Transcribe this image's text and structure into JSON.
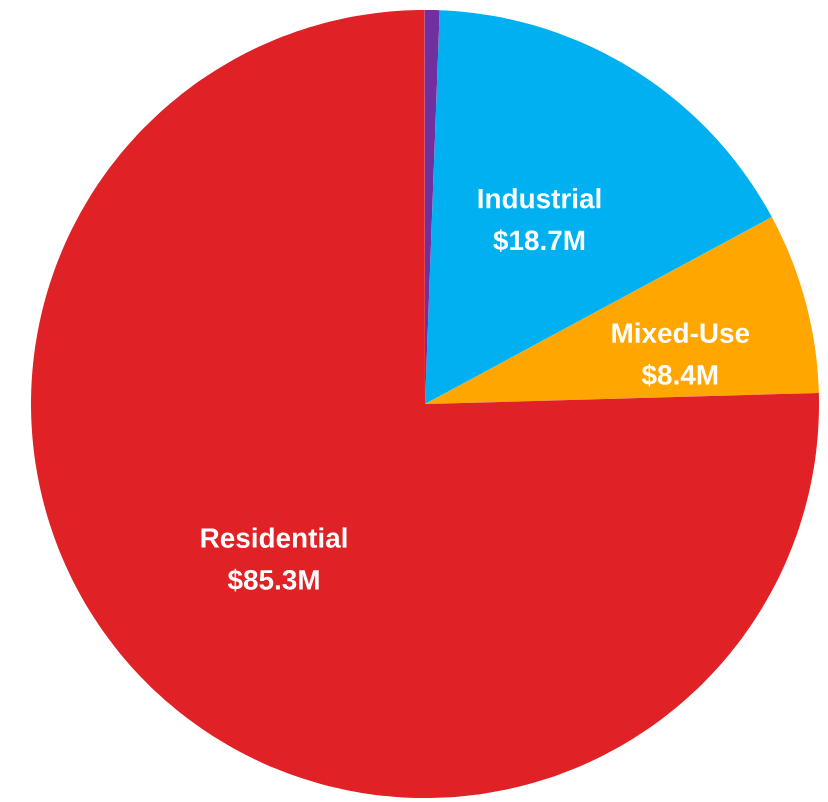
{
  "chart_data": {
    "type": "pie",
    "categories": [
      "Mixed-Use",
      "Industrial",
      null,
      "Residential"
    ],
    "values": [
      8.4,
      18.7,
      0.7,
      85.3
    ],
    "colors": [
      "#ffa600",
      "#00b0f0",
      "#7030a0",
      "#e02126"
    ],
    "value_labels": [
      "$8.4M",
      "$18.7M",
      null,
      "$85.3M"
    ]
  }
}
